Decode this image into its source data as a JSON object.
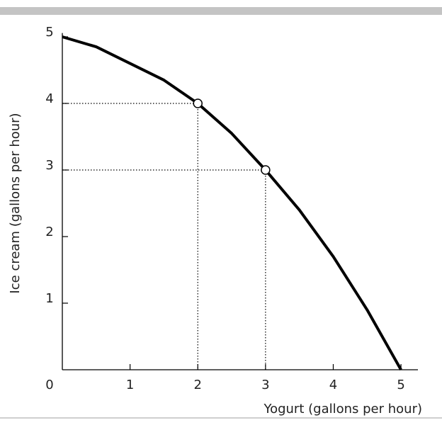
{
  "chart_data": {
    "type": "line",
    "x_label": "Yogurt (gallons per hour)",
    "y_label": "Ice cream (gallons per hour)",
    "x": [
      0,
      0.5,
      1,
      1.5,
      2,
      2.5,
      3,
      3.5,
      4,
      4.5,
      5
    ],
    "series": [
      {
        "color": "#000000",
        "values": [
          5,
          4.85,
          4.6,
          4.35,
          4,
          3.55,
          3,
          2.4,
          1.7,
          0.9,
          0
        ]
      }
    ],
    "points": {
      "x": [
        2,
        3
      ],
      "y": [
        4,
        3
      ]
    },
    "xlim": [
      0,
      5.25
    ],
    "ylim": [
      0,
      5.1
    ],
    "xticks": [
      0,
      1,
      2,
      3,
      4,
      5
    ],
    "yticks": [
      1,
      2,
      3,
      4,
      5
    ]
  }
}
